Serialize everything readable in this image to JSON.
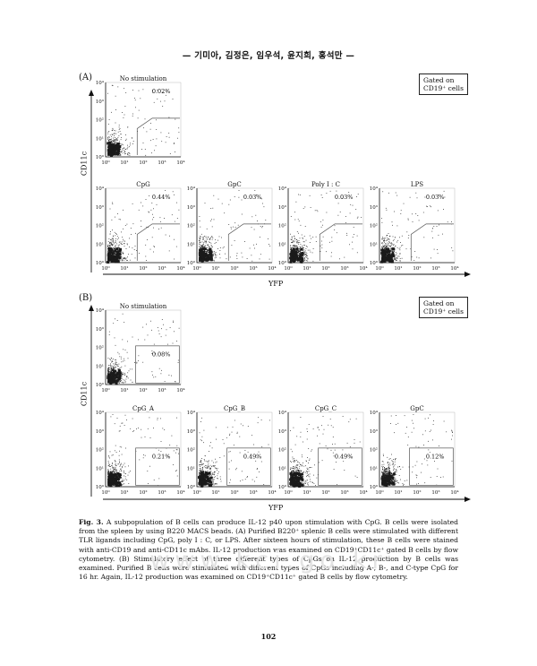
{
  "header": {
    "running_title": "— 기미아, 김정은, 임우석, 윤지희, 홍석만 —"
  },
  "figure": {
    "panel_a": {
      "label": "(A)",
      "gate_note": [
        "Gated on",
        "CD19⁺ cells"
      ],
      "y_axis_title": "CD11c",
      "x_axis_title": "YFP",
      "plots": [
        {
          "title": "No stimulation",
          "percent": "0.02%"
        },
        {
          "title": "CpG",
          "percent": "0.44%"
        },
        {
          "title": "GpC",
          "percent": "0.03%"
        },
        {
          "title": "Poly I : C",
          "percent": "0.03%"
        },
        {
          "title": "LPS",
          "percent": "0.03%"
        }
      ]
    },
    "panel_b": {
      "label": "(B)",
      "gate_note": [
        "Gated on",
        "CD19⁺ cells"
      ],
      "y_axis_title": "CD11c",
      "x_axis_title": "YFP",
      "plots": [
        {
          "title": "No stimulation",
          "percent": "0.08%"
        },
        {
          "title": "CpG_A",
          "percent": "0.21%"
        },
        {
          "title": "CpG_B",
          "percent": "0.49%"
        },
        {
          "title": "CpG_C",
          "percent": "0.49%"
        },
        {
          "title": "GpC",
          "percent": "0.12%"
        }
      ]
    },
    "axis_ticks": [
      "10⁰",
      "10¹",
      "10²",
      "10³",
      "10⁴"
    ]
  },
  "caption": {
    "label": "Fig. 3.",
    "text": "A subpopulation of B cells can produce IL-12 p40 upon stimulation with CpG. B cells were isolated from the spleen by using B220 MACS beads. (A) Purified B220⁺ splenic B cells were stimulated with different TLR ligands including CpG, poly I : C, or LPS. After sixteen hours of stimulation, these B cells were stained with anti-CD19 and anti-CD11c mAbs. IL-12 production was examined on CD19⁺CD11c⁺ gated B cells by flow cytometry. (B) Stimulatory effect of three different types of CpGs on IL-12 production by B cells was examined. Purified B cells were stimulated with different types of CpGs including A-, B-, and C-type CpG for 16 hr. Again, IL-12 production was examined on CD19⁺CD11c⁺ gated B cells by flow cytometry."
  },
  "watermark": "www.kci.go.kr",
  "page_number": "102",
  "style": {
    "ink": "#111111",
    "dots": "#1a1a1a",
    "gate": "#555555",
    "watermark": "#e3e3e3"
  }
}
